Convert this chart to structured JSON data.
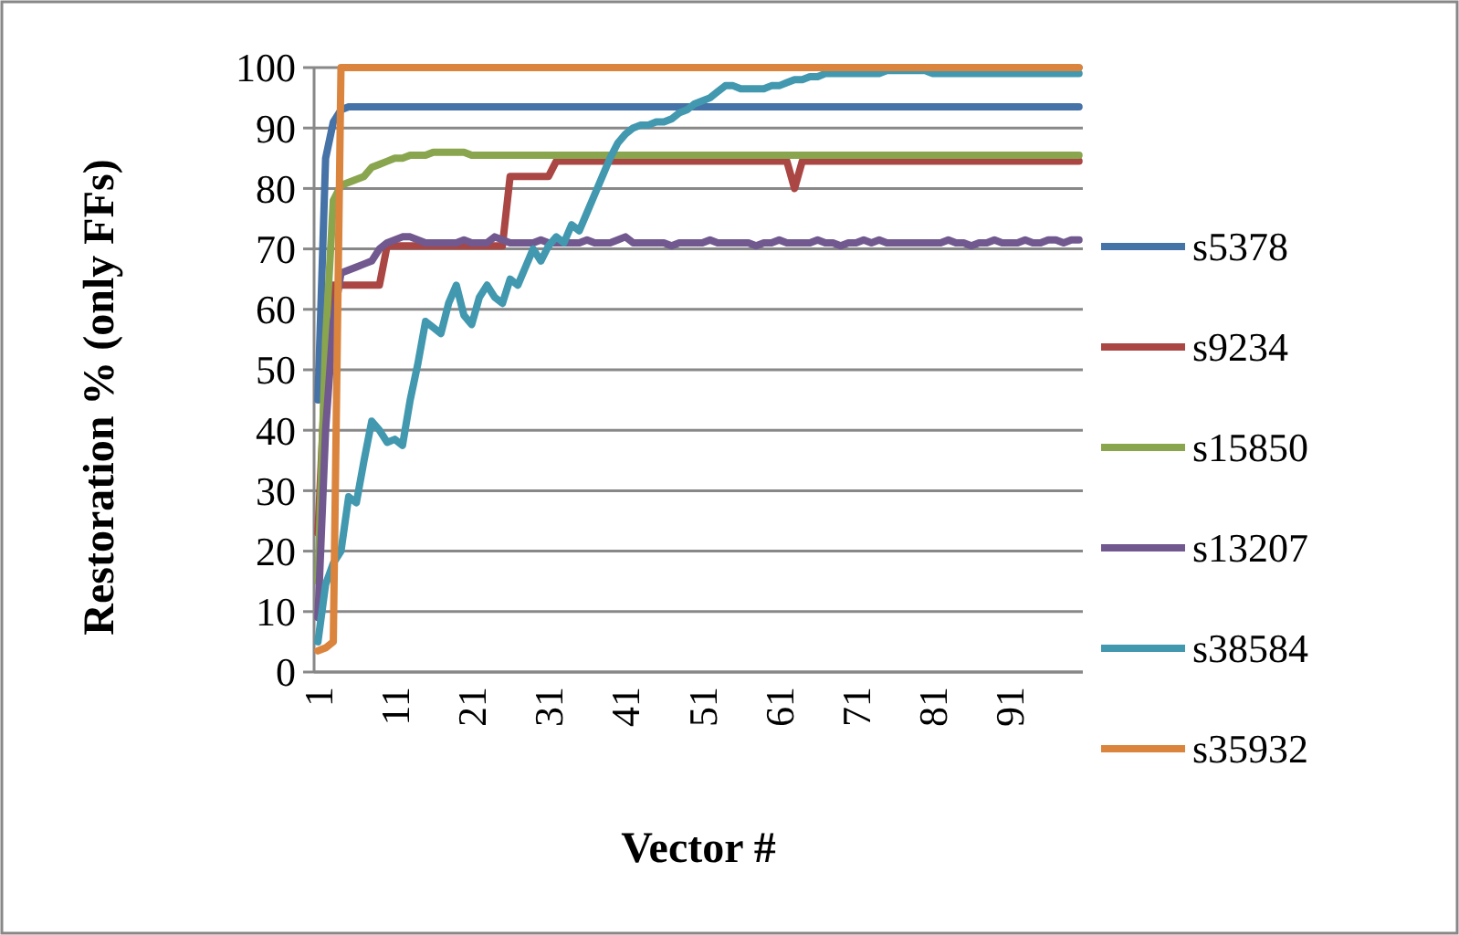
{
  "chart_data": {
    "type": "line",
    "xlabel": "Vector #",
    "ylabel": "Restoration % (only FFs)",
    "categories": [
      "1",
      null,
      null,
      null,
      null,
      null,
      null,
      null,
      null,
      null,
      "11",
      null,
      null,
      null,
      null,
      null,
      null,
      null,
      null,
      null,
      "21",
      null,
      null,
      null,
      null,
      null,
      null,
      null,
      null,
      null,
      "31",
      null,
      null,
      null,
      null,
      null,
      null,
      null,
      null,
      null,
      "41",
      null,
      null,
      null,
      null,
      null,
      null,
      null,
      null,
      null,
      "51",
      null,
      null,
      null,
      null,
      null,
      null,
      null,
      null,
      null,
      "61",
      null,
      null,
      null,
      null,
      null,
      null,
      null,
      null,
      null,
      "71",
      null,
      null,
      null,
      null,
      null,
      null,
      null,
      null,
      null,
      "81",
      null,
      null,
      null,
      null,
      null,
      null,
      null,
      null,
      null,
      "91",
      null,
      null,
      null,
      null,
      null,
      null,
      null,
      null,
      null
    ],
    "ylim": [
      0,
      100
    ],
    "yticks": [
      0,
      10,
      20,
      30,
      40,
      50,
      60,
      70,
      80,
      90,
      100
    ],
    "grid": "y",
    "legend": "right",
    "marker": "none",
    "line_style": "solid",
    "series": [
      {
        "name": "s5378",
        "color": "#4572a7",
        "values": [
          45,
          85,
          91,
          93,
          93.5,
          93.5,
          93.5,
          93.5,
          93.5,
          93.5,
          93.5,
          93.5,
          93.5,
          93.5,
          93.5,
          93.5,
          93.5,
          93.5,
          93.5,
          93.5,
          93.5,
          93.5,
          93.5,
          93.5,
          93.5,
          93.5,
          93.5,
          93.5,
          93.5,
          93.5,
          93.5,
          93.5,
          93.5,
          93.5,
          93.5,
          93.5,
          93.5,
          93.5,
          93.5,
          93.5,
          93.5,
          93.5,
          93.5,
          93.5,
          93.5,
          93.5,
          93.5,
          93.5,
          93.5,
          93.5,
          93.5,
          93.5,
          93.5,
          93.5,
          93.5,
          93.5,
          93.5,
          93.5,
          93.5,
          93.5,
          93.5,
          93.5,
          93.5,
          93.5,
          93.5,
          93.5,
          93.5,
          93.5,
          93.5,
          93.5,
          93.5,
          93.5,
          93.5,
          93.5,
          93.5,
          93.5,
          93.5,
          93.5,
          93.5,
          93.5,
          93.5,
          93.5,
          93.5,
          93.5,
          93.5,
          93.5,
          93.5,
          93.5,
          93.5,
          93.5,
          93.5,
          93.5,
          93.5,
          93.5,
          93.5,
          93.5,
          93.5,
          93.5,
          93.5,
          93.5
        ]
      },
      {
        "name": "s9234",
        "color": "#aa4643",
        "values": [
          23,
          50,
          64,
          64,
          64,
          64,
          64,
          64,
          64,
          70.5,
          70.5,
          70.5,
          70.5,
          70.5,
          70.5,
          70.5,
          70.5,
          70.5,
          70.5,
          70.5,
          70.5,
          70.5,
          70.5,
          70.5,
          70.5,
          82,
          82,
          82,
          82,
          82,
          82,
          84.5,
          84.5,
          84.5,
          84.5,
          84.5,
          84.5,
          84.5,
          84.5,
          84.5,
          84.5,
          84.5,
          84.5,
          84.5,
          84.5,
          84.5,
          84.5,
          84.5,
          84.5,
          84.5,
          84.5,
          84.5,
          84.5,
          84.5,
          84.5,
          84.5,
          84.5,
          84.5,
          84.5,
          84.5,
          84.5,
          84.5,
          80,
          84.5,
          84.5,
          84.5,
          84.5,
          84.5,
          84.5,
          84.5,
          84.5,
          84.5,
          84.5,
          84.5,
          84.5,
          84.5,
          84.5,
          84.5,
          84.5,
          84.5,
          84.5,
          84.5,
          84.5,
          84.5,
          84.5,
          84.5,
          84.5,
          84.5,
          84.5,
          84.5,
          84.5,
          84.5,
          84.5,
          84.5,
          84.5,
          84.5,
          84.5,
          84.5,
          84.5,
          84.5
        ]
      },
      {
        "name": "s15850",
        "color": "#89a54e",
        "values": [
          15,
          55,
          78,
          80.5,
          81,
          81.5,
          82,
          83.5,
          84,
          84.5,
          85,
          85,
          85.5,
          85.5,
          85.5,
          86,
          86,
          86,
          86,
          86,
          85.5,
          85.5,
          85.5,
          85.5,
          85.5,
          85.5,
          85.5,
          85.5,
          85.5,
          85.5,
          85.5,
          85.5,
          85.5,
          85.5,
          85.5,
          85.5,
          85.5,
          85.5,
          85.5,
          85.5,
          85.5,
          85.5,
          85.5,
          85.5,
          85.5,
          85.5,
          85.5,
          85.5,
          85.5,
          85.5,
          85.5,
          85.5,
          85.5,
          85.5,
          85.5,
          85.5,
          85.5,
          85.5,
          85.5,
          85.5,
          85.5,
          85.5,
          85.5,
          85.5,
          85.5,
          85.5,
          85.5,
          85.5,
          85.5,
          85.5,
          85.5,
          85.5,
          85.5,
          85.5,
          85.5,
          85.5,
          85.5,
          85.5,
          85.5,
          85.5,
          85.5,
          85.5,
          85.5,
          85.5,
          85.5,
          85.5,
          85.5,
          85.5,
          85.5,
          85.5,
          85.5,
          85.5,
          85.5,
          85.5,
          85.5,
          85.5,
          85.5,
          85.5,
          85.5,
          85.5
        ]
      },
      {
        "name": "s13207",
        "color": "#71588f",
        "values": [
          9,
          40,
          58,
          66,
          66.5,
          67,
          67.5,
          68,
          70,
          71,
          71.5,
          72,
          72,
          71.5,
          71,
          71,
          71,
          71,
          71,
          71.5,
          71,
          71,
          71,
          72,
          71.5,
          71,
          71,
          71,
          71,
          71.5,
          71,
          71,
          71,
          71,
          71,
          71.5,
          71,
          71,
          71,
          71.5,
          72,
          71,
          71,
          71,
          71,
          71,
          70.5,
          71,
          71,
          71,
          71,
          71.5,
          71,
          71,
          71,
          71,
          71,
          70.5,
          71,
          71,
          71.5,
          71,
          71,
          71,
          71,
          71.5,
          71,
          71,
          70.5,
          71,
          71,
          71.5,
          71,
          71.5,
          71,
          71,
          71,
          71,
          71,
          71,
          71,
          71,
          71.5,
          71,
          71,
          70.5,
          71,
          71,
          71.5,
          71,
          71,
          71,
          71.5,
          71,
          71,
          71.5,
          71.5,
          71,
          71.5,
          71.5
        ]
      },
      {
        "name": "s38584",
        "color": "#4198af",
        "values": [
          5,
          14.5,
          18,
          20,
          29,
          28,
          35,
          41.5,
          40,
          38,
          38.5,
          37.5,
          45,
          51,
          58,
          57,
          56,
          61,
          64,
          59,
          57.5,
          62,
          64,
          62,
          61,
          65,
          64,
          67,
          70,
          68,
          70.5,
          72,
          71,
          74,
          73,
          76,
          79,
          82,
          85,
          87.5,
          89,
          90,
          90.5,
          90.5,
          91,
          91,
          91.5,
          92.5,
          93,
          94,
          94.5,
          95,
          96,
          97,
          97,
          96.5,
          96.5,
          96.5,
          96.5,
          97,
          97,
          97.5,
          98,
          98,
          98.5,
          98.5,
          99,
          99,
          99,
          99,
          99,
          99,
          99,
          99,
          99.5,
          99.5,
          99.5,
          99.5,
          99.5,
          99.5,
          99,
          99,
          99,
          99,
          99,
          99,
          99,
          99,
          99,
          99,
          99,
          99,
          99,
          99,
          99,
          99,
          99,
          99,
          99,
          99
        ]
      },
      {
        "name": "s35932",
        "color": "#db843d",
        "values": [
          3.5,
          4,
          5,
          100,
          100,
          100,
          100,
          100,
          100,
          100,
          100,
          100,
          100,
          100,
          100,
          100,
          100,
          100,
          100,
          100,
          100,
          100,
          100,
          100,
          100,
          100,
          100,
          100,
          100,
          100,
          100,
          100,
          100,
          100,
          100,
          100,
          100,
          100,
          100,
          100,
          100,
          100,
          100,
          100,
          100,
          100,
          100,
          100,
          100,
          100,
          100,
          100,
          100,
          100,
          100,
          100,
          100,
          100,
          100,
          100,
          100,
          100,
          100,
          100,
          100,
          100,
          100,
          100,
          100,
          100,
          100,
          100,
          100,
          100,
          100,
          100,
          100,
          100,
          100,
          100,
          100,
          100,
          100,
          100,
          100,
          100,
          100,
          100,
          100,
          100,
          100,
          100,
          100,
          100,
          100,
          100,
          100,
          100,
          100,
          100
        ]
      }
    ]
  }
}
